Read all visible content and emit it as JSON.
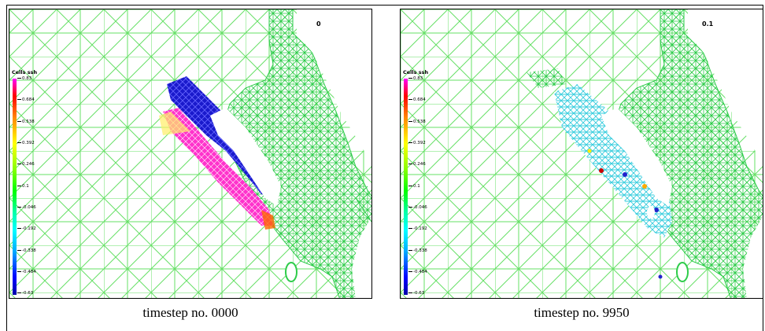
{
  "panels": [
    {
      "time_label": "0",
      "legend_title": "Cells ssh",
      "legend_ticks": [
        "0.83",
        "0.684",
        "0.538",
        "0.392",
        "0.246",
        "0.1",
        "-0.046",
        "-0.192",
        "-0.338",
        "-0.484",
        "-0.63"
      ],
      "caption": "timestep no. 0000"
    },
    {
      "time_label": "0.1",
      "legend_title": "Cells ssh",
      "legend_ticks": [
        "0.83",
        "0.684",
        "0.538",
        "0.392",
        "0.246",
        "0.1",
        "-0.046",
        "-0.192",
        "-0.338",
        "-0.484",
        "-0.63"
      ],
      "caption": "timestep no. 9950"
    }
  ],
  "colors": {
    "mesh": "#66e066",
    "coast_mesh": "#33cc55",
    "high": "#ff00ff",
    "low": "#0000cc"
  }
}
